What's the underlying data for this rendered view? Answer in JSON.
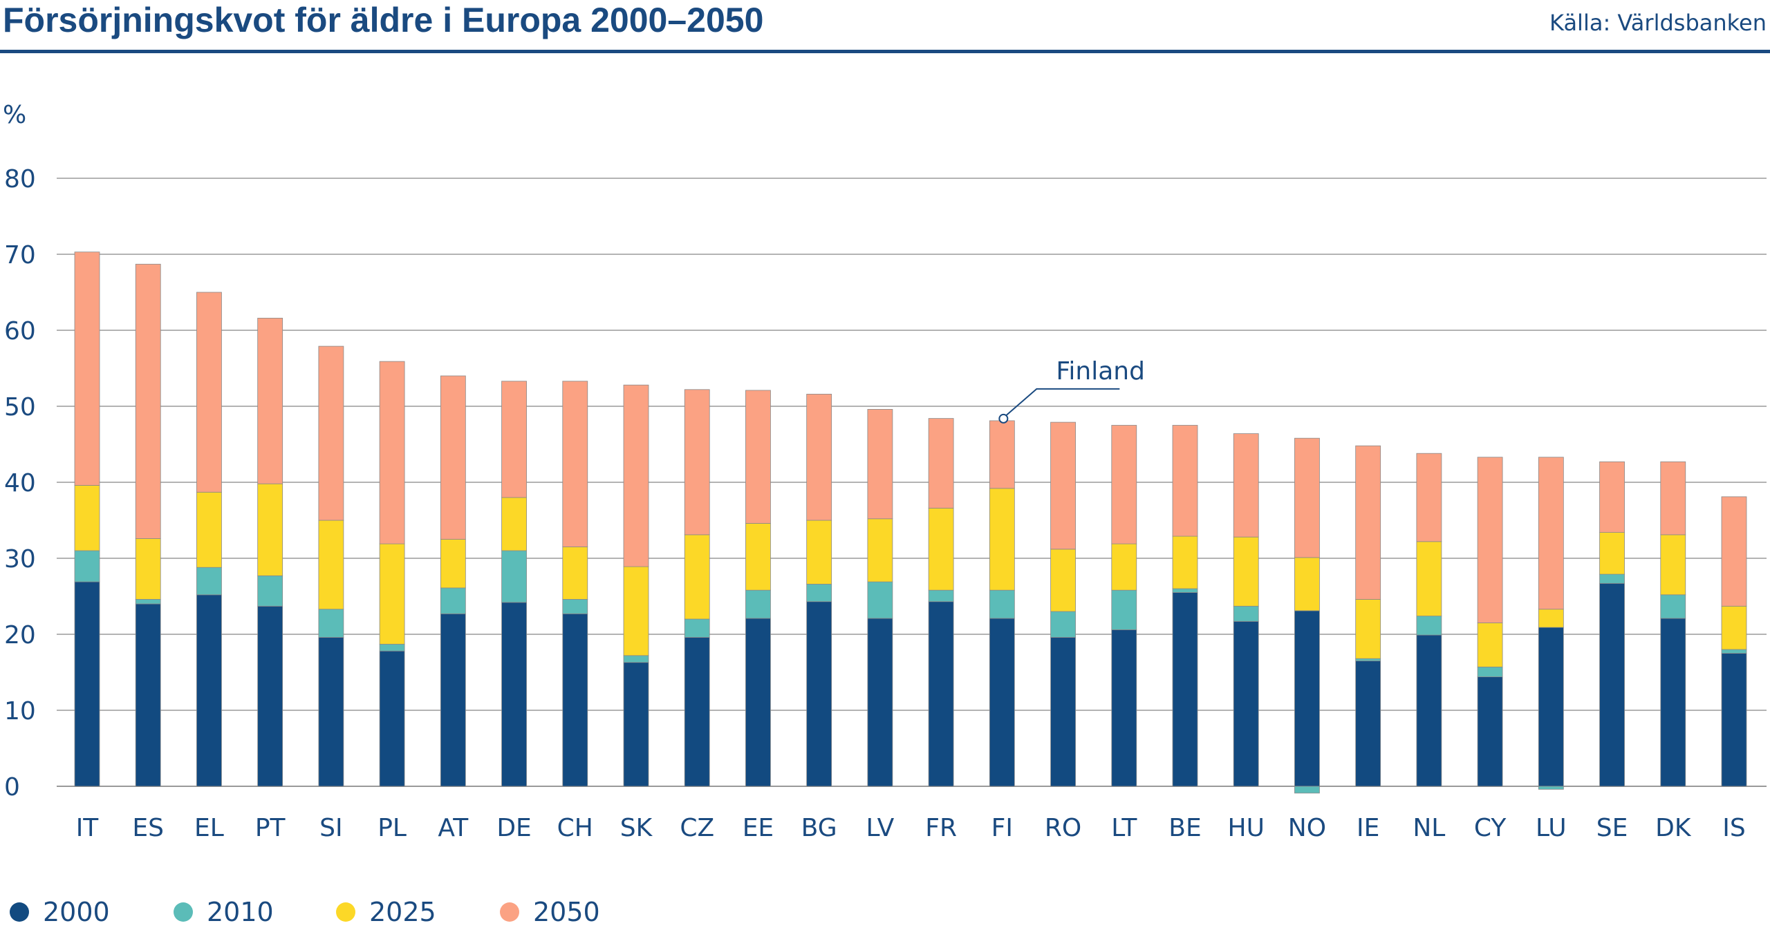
{
  "header": {
    "title": "Försörjningskvot för äldre i Europa 2000–2050",
    "source": "Källa: Världsbanken"
  },
  "colors": {
    "2000": "#124a80",
    "2010": "#5bbcb8",
    "2025": "#fcd827",
    "2050": "#fba283",
    "text": "#1a4a80",
    "grid": "#b3b3b3"
  },
  "chart_data": {
    "type": "bar",
    "stacked": true,
    "title": "Försörjningskvot för äldre i Europa 2000–2050",
    "ylabel": "%",
    "ylim": [
      0,
      80
    ],
    "yticks": [
      0,
      10,
      20,
      30,
      40,
      50,
      60,
      70,
      80
    ],
    "grid": true,
    "legend_position": "bottom-left",
    "categories": [
      "IT",
      "ES",
      "EL",
      "PT",
      "SI",
      "PL",
      "AT",
      "DE",
      "CH",
      "SK",
      "CZ",
      "EE",
      "BG",
      "LV",
      "FR",
      "FI",
      "RO",
      "LT",
      "BE",
      "HU",
      "NO",
      "IE",
      "NL",
      "CY",
      "LU",
      "SE",
      "DK",
      "IS"
    ],
    "series": [
      {
        "name": "2000",
        "values": [
          26.9,
          24.0,
          25.2,
          23.7,
          19.6,
          17.8,
          22.7,
          24.2,
          22.7,
          16.3,
          19.6,
          22.1,
          24.3,
          22.1,
          24.3,
          22.1,
          19.6,
          20.6,
          25.5,
          21.7,
          23.1,
          16.5,
          19.9,
          14.4,
          20.9,
          26.7,
          22.1,
          17.5
        ]
      },
      {
        "name": "2010",
        "values": [
          4.1,
          0.6,
          3.6,
          4.0,
          3.7,
          0.9,
          3.4,
          6.8,
          1.9,
          0.9,
          2.4,
          3.7,
          2.3,
          4.8,
          1.5,
          3.7,
          3.4,
          5.2,
          0.5,
          2.0,
          -0.9,
          0.3,
          2.5,
          1.3,
          -0.4,
          1.2,
          3.1,
          0.5
        ]
      },
      {
        "name": "2025",
        "values": [
          8.6,
          8.0,
          9.9,
          12.1,
          11.7,
          13.2,
          6.4,
          7.0,
          6.9,
          11.7,
          11.1,
          8.8,
          8.4,
          8.3,
          10.8,
          13.4,
          8.2,
          6.1,
          6.9,
          9.1,
          7.0,
          7.8,
          9.8,
          5.8,
          2.4,
          5.5,
          7.9,
          5.7
        ]
      },
      {
        "name": "2050",
        "values": [
          30.7,
          36.1,
          26.3,
          21.8,
          22.9,
          24.0,
          21.5,
          15.3,
          21.8,
          23.9,
          19.1,
          17.5,
          16.6,
          14.4,
          11.8,
          8.9,
          16.7,
          15.6,
          14.6,
          13.6,
          15.7,
          20.2,
          11.6,
          21.8,
          20.0,
          9.3,
          9.6,
          14.4
        ]
      }
    ],
    "annotations": [
      {
        "text": "Finland",
        "category": "FI"
      }
    ]
  }
}
